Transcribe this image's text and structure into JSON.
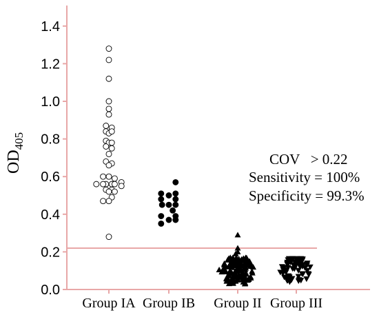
{
  "chart_data": {
    "type": "scatter",
    "ylabel": "OD",
    "ylabel_sub": "405",
    "ylim": [
      0,
      1.45
    ],
    "yticks": [
      "0.0",
      "0.2",
      "0.4",
      "0.6",
      "0.8",
      "1.0",
      "1.2",
      "1.4"
    ],
    "yticks_values": [
      0,
      0.2,
      0.4,
      0.6,
      0.8,
      1.0,
      1.2,
      1.4
    ],
    "categories": [
      "Group IA",
      "Group IB",
      "Group II",
      "Group III"
    ],
    "cutoff": 0.22,
    "colors": {
      "axis": "#e8a7a7",
      "cutoff_line": "#e8a7a7",
      "marker": "#000000"
    },
    "series": [
      {
        "category": "Group IA",
        "marker": "open-circle",
        "points": [
          [
            0,
            1.28
          ],
          [
            0,
            1.22
          ],
          [
            0,
            1.12
          ],
          [
            0,
            1.0
          ],
          [
            0,
            0.96
          ],
          [
            -0.3,
            0.87
          ],
          [
            0.3,
            0.86
          ],
          [
            0,
            0.93
          ],
          [
            -0.3,
            0.84
          ],
          [
            0,
            0.83
          ],
          [
            0.3,
            0.84
          ],
          [
            -0.3,
            0.79
          ],
          [
            0,
            0.78
          ],
          [
            0.3,
            0.78
          ],
          [
            -0.3,
            0.76
          ],
          [
            0.3,
            0.75
          ],
          [
            0,
            0.72
          ],
          [
            -0.3,
            0.68
          ],
          [
            0.3,
            0.67
          ],
          [
            0,
            0.66
          ],
          [
            -0.6,
            0.6
          ],
          [
            0,
            0.6
          ],
          [
            0.6,
            0.59
          ],
          [
            -0.3,
            0.56
          ],
          [
            0.3,
            0.56
          ],
          [
            -1.3,
            0.56
          ],
          [
            -0.6,
            0.56
          ],
          [
            0.6,
            0.56
          ],
          [
            1.3,
            0.57
          ],
          [
            1.3,
            0.55
          ],
          [
            -0.3,
            0.53
          ],
          [
            0.3,
            0.53
          ],
          [
            0.6,
            0.52
          ],
          [
            0,
            0.52
          ],
          [
            0.3,
            0.49
          ],
          [
            -0.6,
            0.47
          ],
          [
            0,
            0.47
          ],
          [
            0,
            0.28
          ]
        ]
      },
      {
        "category": "Group IB",
        "marker": "filled-circle",
        "points": [
          [
            0.7,
            0.57
          ],
          [
            -0.8,
            0.51
          ],
          [
            0.7,
            0.51
          ],
          [
            0,
            0.5
          ],
          [
            -0.8,
            0.48
          ],
          [
            0.7,
            0.48
          ],
          [
            -0.7,
            0.45
          ],
          [
            0,
            0.45
          ],
          [
            0.7,
            0.45
          ],
          [
            0.4,
            0.42
          ],
          [
            -0.8,
            0.39
          ],
          [
            0.7,
            0.39
          ],
          [
            -0.8,
            0.35
          ],
          [
            0,
            0.37
          ],
          [
            0.7,
            0.37
          ]
        ]
      },
      {
        "category": "Group II",
        "marker": "filled-triangle-up",
        "points": [],
        "n_approx": 140,
        "range": [
          0.03,
          0.29
        ]
      },
      {
        "category": "Group III",
        "marker": "filled-triangle-down",
        "points": [],
        "n_approx": 70,
        "range": [
          0.04,
          0.17
        ]
      }
    ],
    "annotations": {
      "line1": "COV   > 0.22",
      "line2": "Sensitivity = 100%",
      "line3": "Specificity = 99.3%"
    }
  }
}
